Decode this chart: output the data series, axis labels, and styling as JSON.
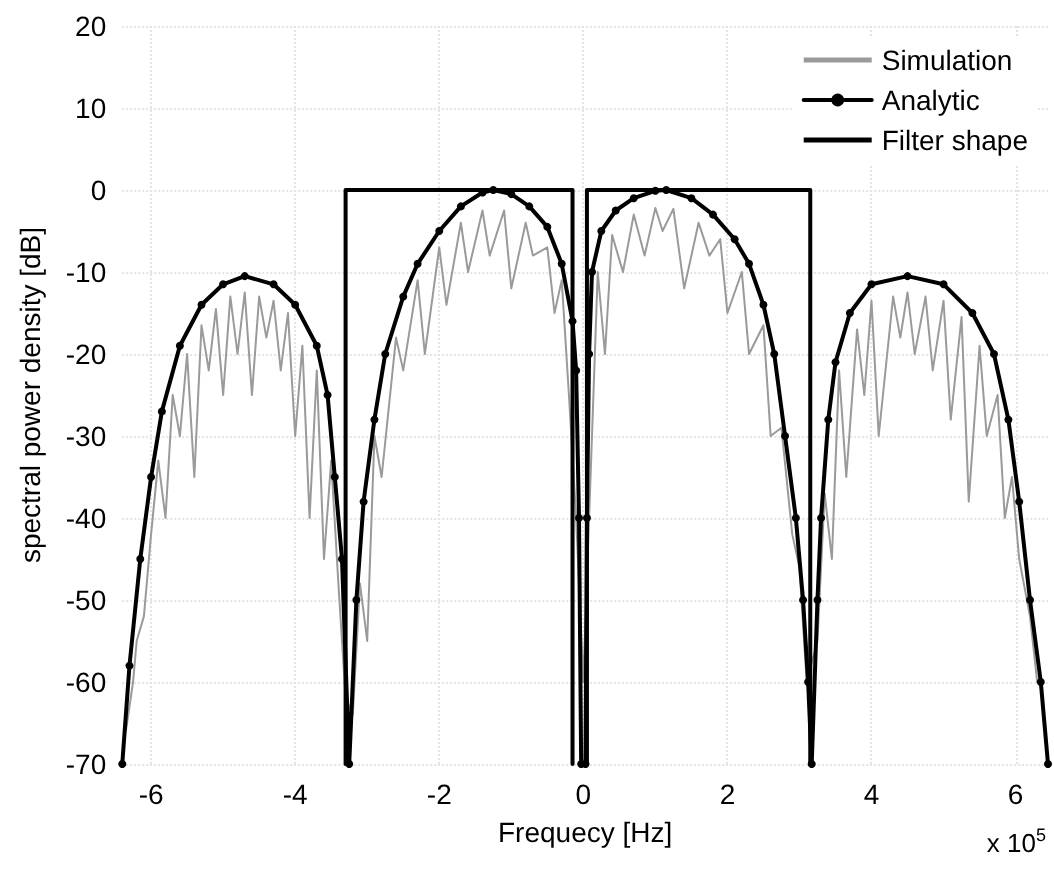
{
  "chart_data": {
    "type": "line",
    "xlabel": "Frequecy [Hz]",
    "ylabel": "spectral power density [dB]",
    "annotations": [
      "x 10$^{5}$"
    ],
    "xlim": [
      -6.4,
      6.45
    ],
    "xticks": [
      -6,
      -4,
      -2,
      0,
      2,
      4,
      6
    ],
    "ylim": [
      -70,
      20
    ],
    "yticks": [
      -70,
      -60,
      -50,
      -40,
      -30,
      -20,
      -10,
      0,
      10,
      20
    ],
    "grid": true,
    "legend": "top right",
    "line_style": "solid",
    "series": [
      {
        "name": "Simulation",
        "color": "#9a9a9a",
        "marker": "none",
        "x": [
          -6.35,
          -6.25,
          -6.2,
          -6.1,
          -6.0,
          -5.9,
          -5.8,
          -5.7,
          -5.6,
          -5.5,
          -5.4,
          -5.3,
          -5.2,
          -5.1,
          -5.0,
          -4.9,
          -4.8,
          -4.7,
          -4.6,
          -4.5,
          -4.4,
          -4.3,
          -4.2,
          -4.1,
          -4.0,
          -3.9,
          -3.8,
          -3.7,
          -3.6,
          -3.5,
          -3.4,
          -3.3,
          -3.2,
          -3.1,
          -3.0,
          -2.9,
          -2.8,
          -2.6,
          -2.5,
          -2.3,
          -2.2,
          -2.0,
          -1.9,
          -1.7,
          -1.6,
          -1.4,
          -1.3,
          -1.1,
          -1.0,
          -0.8,
          -0.7,
          -0.5,
          -0.4,
          -0.3,
          -0.2,
          -0.1,
          0,
          0.1,
          0.2,
          0.3,
          0.4,
          0.55,
          0.7,
          0.85,
          1.0,
          1.1,
          1.25,
          1.4,
          1.6,
          1.75,
          1.9,
          2.0,
          2.2,
          2.3,
          2.5,
          2.6,
          2.75,
          2.9,
          3.0,
          3.1,
          3.25,
          3.35,
          3.45,
          3.55,
          3.65,
          3.8,
          3.9,
          4.0,
          4.1,
          4.3,
          4.4,
          4.5,
          4.6,
          4.75,
          4.85,
          5.0,
          5.1,
          5.25,
          5.35,
          5.5,
          5.6,
          5.75,
          5.85,
          5.95,
          6.05,
          6.2,
          6.3
        ],
        "values": [
          -66,
          -60,
          -55,
          -52,
          -42,
          -33,
          -40,
          -25,
          -30,
          -20,
          -35,
          -16.5,
          -22,
          -14.5,
          -25,
          -13,
          -20,
          -12.5,
          -25,
          -13,
          -18,
          -13.5,
          -22,
          -15,
          -30,
          -19,
          -40,
          -22,
          -45,
          -33,
          -48,
          -62,
          -64,
          -48,
          -55,
          -30,
          -35,
          -18,
          -22,
          -11,
          -20,
          -7,
          -14,
          -4,
          -10,
          -2.5,
          -8,
          -2.5,
          -12,
          -4,
          -8,
          -7,
          -15,
          -11,
          -25,
          -40,
          -60,
          -35,
          -10,
          -20,
          -5.5,
          -10,
          -3,
          -8,
          -2.2,
          -5,
          -2.3,
          -12,
          -4,
          -8,
          -6,
          -15,
          -10,
          -20,
          -16.5,
          -30,
          -29,
          -42,
          -46,
          -60,
          -55,
          -37,
          -45,
          -22,
          -35,
          -17,
          -25,
          -13.5,
          -30,
          -13,
          -18,
          -12.5,
          -20,
          -13,
          -22,
          -13.5,
          -28,
          -15.5,
          -38,
          -19,
          -30,
          -25,
          -40,
          -35,
          -45,
          -52,
          -60
        ]
      },
      {
        "name": "Analytic",
        "color": "#000000",
        "marker": "circle",
        "x": [
          -6.4,
          -6.3,
          -6.15,
          -6.0,
          -5.85,
          -5.6,
          -5.3,
          -5.0,
          -4.7,
          -4.3,
          -4.0,
          -3.7,
          -3.55,
          -3.45,
          -3.35,
          -3.25,
          -3.15,
          -3.05,
          -2.9,
          -2.75,
          -2.5,
          -2.3,
          -2.0,
          -1.7,
          -1.4,
          -1.25,
          -1.0,
          -0.75,
          -0.5,
          -0.3,
          -0.15,
          -0.1,
          -0.06,
          -0.03,
          0.03,
          0.05,
          0.08,
          0.12,
          0.25,
          0.45,
          0.7,
          1.0,
          1.15,
          1.5,
          1.8,
          2.1,
          2.3,
          2.5,
          2.65,
          2.8,
          2.95,
          3.05,
          3.12,
          3.17,
          3.25,
          3.3,
          3.4,
          3.5,
          3.7,
          4.0,
          4.5,
          5.0,
          5.4,
          5.7,
          5.9,
          6.05,
          6.2,
          6.35,
          6.45
        ],
        "values": [
          -70,
          -58,
          -45,
          -35,
          -27,
          -19,
          -14,
          -11.5,
          -10.5,
          -11.5,
          -14,
          -19,
          -25,
          -35,
          -45,
          -70,
          -50,
          -38,
          -28,
          -20,
          -13,
          -9,
          -5,
          -2,
          -0.3,
          0,
          -0.5,
          -2,
          -4.5,
          -9,
          -16,
          -22,
          -40,
          -70,
          -70,
          -40,
          -20,
          -10,
          -5,
          -2.5,
          -1,
          -0.1,
          0,
          -1,
          -3,
          -6,
          -9,
          -14,
          -20,
          -30,
          -40,
          -50,
          -60,
          -70,
          -50,
          -40,
          -28,
          -21,
          -15,
          -11.5,
          -10.5,
          -11.5,
          -15,
          -20,
          -28,
          -38,
          -50,
          -60,
          -70
        ]
      },
      {
        "name": "Filter shape",
        "color": "#000000",
        "marker": "none",
        "x": [
          -3.3,
          -3.3,
          -0.15,
          -0.15,
          0,
          0.05,
          0.05,
          3.15,
          3.15
        ],
        "values": [
          -70,
          0,
          0,
          -70,
          null,
          -70,
          0,
          0,
          -70
        ]
      }
    ]
  }
}
